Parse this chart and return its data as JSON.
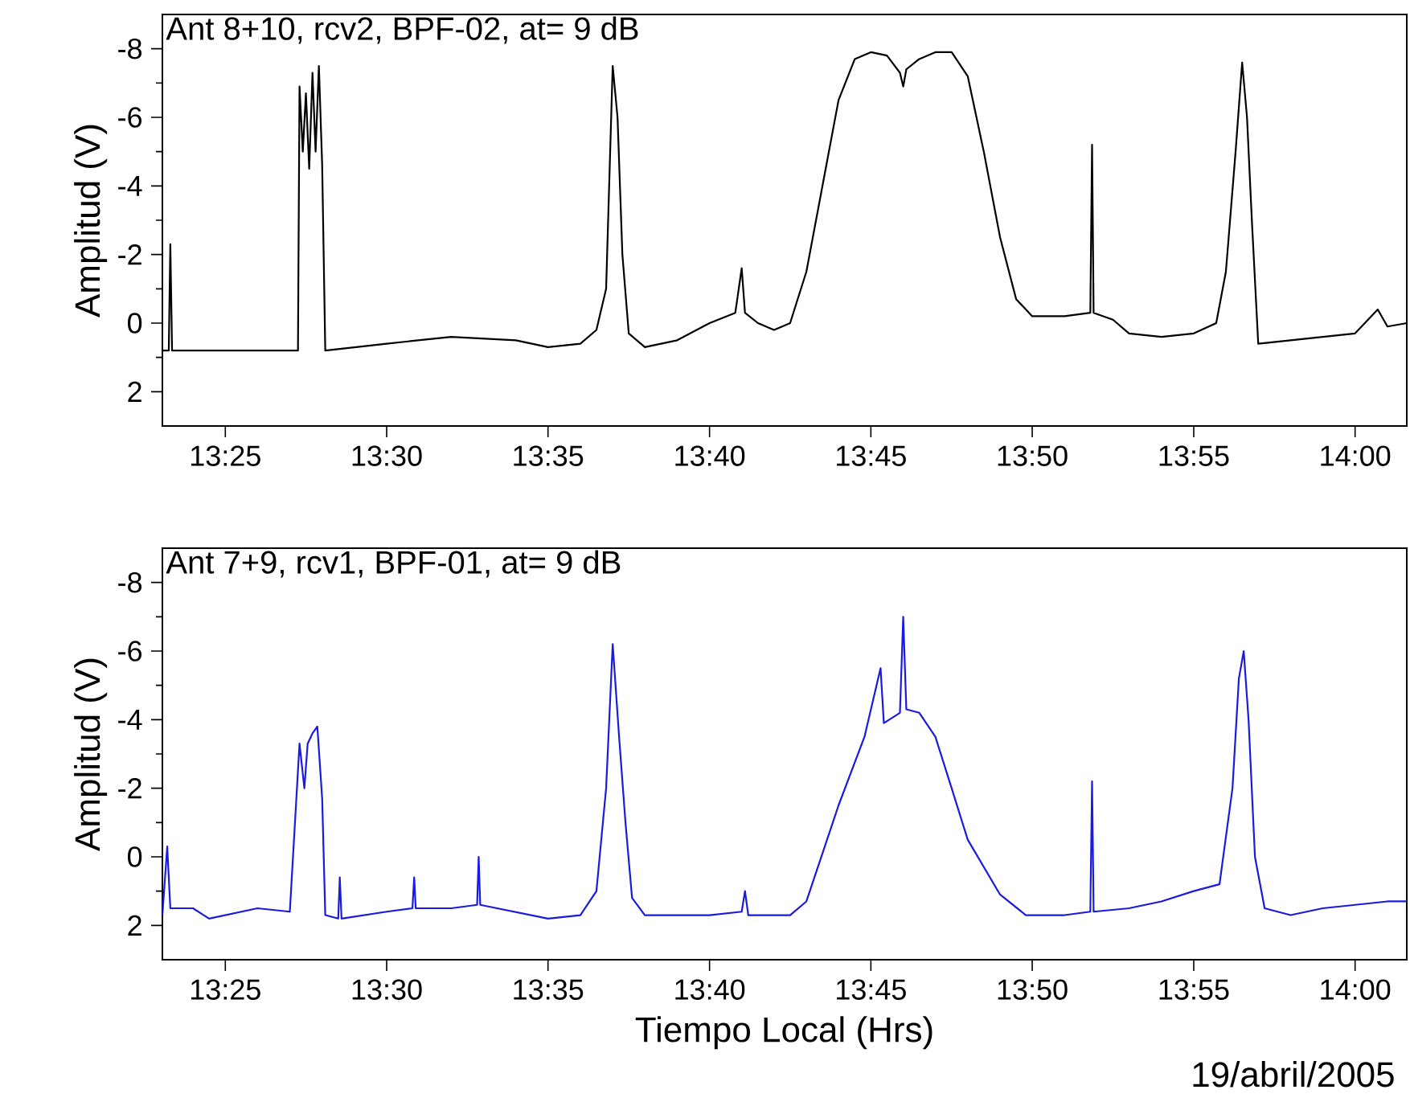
{
  "chart_data": [
    {
      "type": "line",
      "title": "Ant 8+10, rcv2, BPF-02, at= 9 dB",
      "ylabel": "Amplitud (V)",
      "xlim": [
        13.3842,
        14.0267
      ],
      "ylim": [
        3,
        -9
      ],
      "xticks": [
        {
          "value": 13.4167,
          "label": "13:25"
        },
        {
          "value": 13.5,
          "label": "13:30"
        },
        {
          "value": 13.5833,
          "label": "13:35"
        },
        {
          "value": 13.6667,
          "label": "13:40"
        },
        {
          "value": 13.75,
          "label": "13:45"
        },
        {
          "value": 13.8333,
          "label": "13:50"
        },
        {
          "value": 13.9167,
          "label": "13:55"
        },
        {
          "value": 14.0,
          "label": "14:00"
        }
      ],
      "yticks": [
        -8,
        -6,
        -4,
        -2,
        0,
        2
      ],
      "series": [
        {
          "color": "#000000",
          "x": [
            13.3842,
            13.3875,
            13.3883,
            13.3892,
            13.4167,
            13.45,
            13.4542,
            13.455,
            13.4567,
            13.4583,
            13.46,
            13.4617,
            13.4633,
            13.465,
            13.4667,
            13.4683,
            13.5,
            13.5333,
            13.5667,
            13.5833,
            13.6,
            13.6083,
            13.6133,
            13.6167,
            13.6192,
            13.6217,
            13.625,
            13.6333,
            13.65,
            13.6667,
            13.68,
            13.6833,
            13.685,
            13.6917,
            13.7,
            13.7083,
            13.7167,
            13.725,
            13.7333,
            13.7417,
            13.75,
            13.7583,
            13.765,
            13.7667,
            13.7683,
            13.775,
            13.7833,
            13.7917,
            13.8,
            13.8083,
            13.8167,
            13.825,
            13.8333,
            13.85,
            13.8633,
            13.8642,
            13.865,
            13.875,
            13.8833,
            13.9,
            13.9167,
            13.9283,
            13.9333,
            13.9383,
            13.9417,
            13.9442,
            13.9467,
            13.95,
            13.9667,
            13.9833,
            14.0,
            14.0117,
            14.0167,
            14.0267
          ],
          "values": [
            0.8,
            0.8,
            -2.3,
            0.8,
            0.8,
            0.8,
            0.8,
            -6.9,
            -5.0,
            -6.7,
            -4.5,
            -7.3,
            -5.0,
            -7.5,
            -4.6,
            0.8,
            0.6,
            0.4,
            0.5,
            0.7,
            0.6,
            0.2,
            -1.0,
            -7.5,
            -6.0,
            -2.0,
            0.3,
            0.7,
            0.5,
            0.0,
            -0.3,
            -1.6,
            -0.3,
            0.0,
            0.2,
            0.0,
            -1.5,
            -4.0,
            -6.5,
            -7.7,
            -7.9,
            -7.8,
            -7.3,
            -6.9,
            -7.4,
            -7.7,
            -7.9,
            -7.9,
            -7.2,
            -5.0,
            -2.5,
            -0.7,
            -0.2,
            -0.2,
            -0.3,
            -5.2,
            -0.3,
            -0.1,
            0.3,
            0.4,
            0.3,
            0.0,
            -1.5,
            -5.0,
            -7.6,
            -6.0,
            -3.0,
            0.6,
            0.5,
            0.4,
            0.3,
            -0.4,
            0.1,
            0.0
          ]
        }
      ]
    },
    {
      "type": "line",
      "title": "Ant 7+9, rcv1, BPF-01, at= 9 dB",
      "ylabel": "Amplitud (V)",
      "xlabel": "Tiempo Local (Hrs)",
      "annotations": [
        "19/abril/2005"
      ],
      "xlim": [
        13.3842,
        14.0267
      ],
      "ylim": [
        3,
        -9
      ],
      "xticks": [
        {
          "value": 13.4167,
          "label": "13:25"
        },
        {
          "value": 13.5,
          "label": "13:30"
        },
        {
          "value": 13.5833,
          "label": "13:35"
        },
        {
          "value": 13.6667,
          "label": "13:40"
        },
        {
          "value": 13.75,
          "label": "13:45"
        },
        {
          "value": 13.8333,
          "label": "13:50"
        },
        {
          "value": 13.9167,
          "label": "13:55"
        },
        {
          "value": 14.0,
          "label": "14:00"
        }
      ],
      "yticks": [
        -8,
        -6,
        -4,
        -2,
        0,
        2
      ],
      "series": [
        {
          "color": "#1a1ae0",
          "x": [
            13.3842,
            13.3867,
            13.3883,
            13.4,
            13.4083,
            13.4333,
            13.45,
            13.455,
            13.4575,
            13.4592,
            13.4617,
            13.4642,
            13.4667,
            13.4683,
            13.475,
            13.4758,
            13.4767,
            13.5,
            13.5133,
            13.5142,
            13.515,
            13.5333,
            13.5467,
            13.5475,
            13.5483,
            13.5833,
            13.6,
            13.6083,
            13.6133,
            13.6167,
            13.62,
            13.6233,
            13.6267,
            13.6333,
            13.6667,
            13.6833,
            13.685,
            13.6867,
            13.7083,
            13.7167,
            13.7333,
            13.7467,
            13.755,
            13.7567,
            13.765,
            13.7667,
            13.7683,
            13.775,
            13.7833,
            13.7917,
            13.8,
            13.8167,
            13.83,
            13.85,
            13.8633,
            13.8642,
            13.865,
            13.8833,
            13.9,
            13.9167,
            13.93,
            13.9367,
            13.94,
            13.9425,
            13.945,
            13.9483,
            13.9533,
            13.9667,
            13.9833,
            14.0,
            14.0167,
            14.0267
          ],
          "values": [
            1.7,
            -0.3,
            1.5,
            1.5,
            1.8,
            1.5,
            1.6,
            -3.3,
            -2.0,
            -3.3,
            -3.6,
            -3.8,
            -1.7,
            1.7,
            1.8,
            0.6,
            1.8,
            1.6,
            1.5,
            0.6,
            1.5,
            1.5,
            1.4,
            0.0,
            1.4,
            1.8,
            1.7,
            1.0,
            -2.0,
            -6.2,
            -3.5,
            -1.0,
            1.2,
            1.7,
            1.7,
            1.6,
            1.0,
            1.7,
            1.7,
            1.3,
            -1.5,
            -3.5,
            -5.5,
            -3.9,
            -4.2,
            -7.0,
            -4.3,
            -4.2,
            -3.5,
            -2.0,
            -0.5,
            1.1,
            1.7,
            1.7,
            1.6,
            -2.2,
            1.6,
            1.5,
            1.3,
            1.0,
            0.8,
            -2.0,
            -5.2,
            -6.0,
            -4.0,
            0.0,
            1.5,
            1.7,
            1.5,
            1.4,
            1.3,
            1.3
          ]
        }
      ]
    }
  ]
}
